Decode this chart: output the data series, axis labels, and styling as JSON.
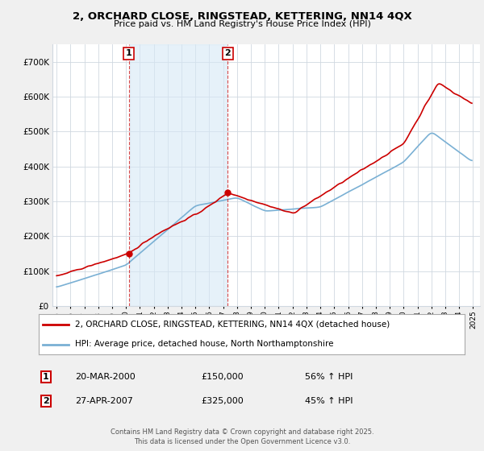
{
  "title": "2, ORCHARD CLOSE, RINGSTEAD, KETTERING, NN14 4QX",
  "subtitle": "Price paid vs. HM Land Registry's House Price Index (HPI)",
  "legend_line1": "2, ORCHARD CLOSE, RINGSTEAD, KETTERING, NN14 4QX (detached house)",
  "legend_line2": "HPI: Average price, detached house, North Northamptonshire",
  "footer": "Contains HM Land Registry data © Crown copyright and database right 2025.\nThis data is licensed under the Open Government Licence v3.0.",
  "ylim": [
    0,
    750000
  ],
  "yticks": [
    0,
    100000,
    200000,
    300000,
    400000,
    500000,
    600000,
    700000
  ],
  "ytick_labels": [
    "£0",
    "£100K",
    "£200K",
    "£300K",
    "£400K",
    "£500K",
    "£600K",
    "£700K"
  ],
  "property_color": "#cc0000",
  "hpi_color": "#7ab0d4",
  "shade_color": "#d6e8f5",
  "background_color": "#f0f0f0",
  "plot_bg_color": "#ffffff",
  "grid_color": "#d0d8e0",
  "ann1_x": 2000.21,
  "ann1_y": 150000,
  "ann2_x": 2007.32,
  "ann2_y": 325000,
  "ann1_date": "20-MAR-2000",
  "ann1_price": "£150,000",
  "ann1_pct": "56% ↑ HPI",
  "ann2_date": "27-APR-2007",
  "ann2_price": "£325,000",
  "ann2_pct": "45% ↑ HPI",
  "xlim": [
    1994.7,
    2025.5
  ],
  "xticks": [
    1995,
    1996,
    1997,
    1998,
    1999,
    2000,
    2001,
    2002,
    2003,
    2004,
    2005,
    2006,
    2007,
    2008,
    2009,
    2010,
    2011,
    2012,
    2013,
    2014,
    2015,
    2016,
    2017,
    2018,
    2019,
    2020,
    2021,
    2022,
    2023,
    2024,
    2025
  ]
}
